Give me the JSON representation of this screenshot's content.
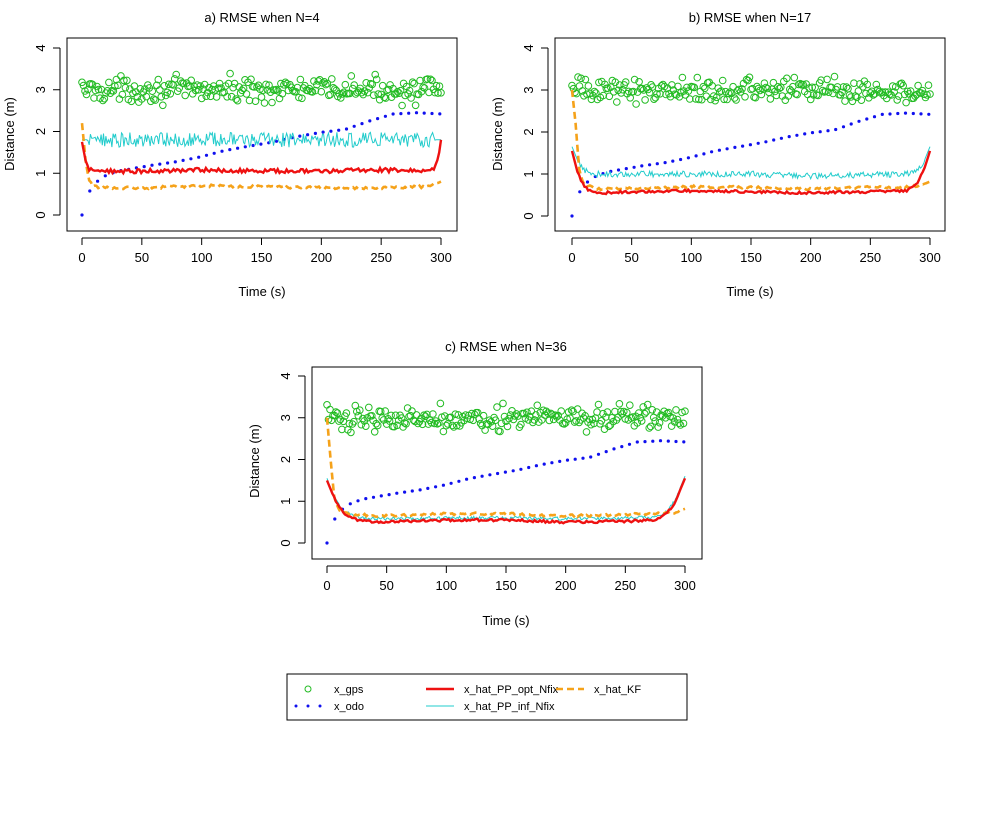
{
  "colors": {
    "gps": "#22bb22",
    "odo": "#1010ee",
    "opt": "#ee1111",
    "inf": "#22cccc",
    "kf": "#f5a21a"
  },
  "legend": {
    "placement": "bottom-center",
    "items": [
      {
        "key": "gps",
        "label": "x_gps",
        "style": "circle"
      },
      {
        "key": "odo",
        "label": "x_odo",
        "style": "dotted"
      },
      {
        "key": "opt",
        "label": "x_hat_PP_opt_Nfix",
        "style": "solid-thick"
      },
      {
        "key": "inf",
        "label": "x_hat_PP_inf_Nfix",
        "style": "solid-thin"
      },
      {
        "key": "kf",
        "label": "x_hat_KF",
        "style": "dashed"
      }
    ]
  },
  "chart_data": [
    {
      "type": "line",
      "title": "a) RMSE when N=4",
      "xlabel": "Time (s)",
      "ylabel": "Distance (m)",
      "xlim": [
        0,
        300
      ],
      "ylim": [
        0,
        4
      ],
      "xticks": [
        0,
        50,
        100,
        150,
        200,
        250,
        300
      ],
      "yticks": [
        0,
        1,
        2,
        3,
        4
      ],
      "grid": false,
      "series": [
        {
          "key": "gps",
          "name": "x_gps",
          "style": "circle",
          "x": [
            0,
            300
          ],
          "y_mean": 3.0,
          "y_spread": 0.35,
          "y_range": [
            2.4,
            3.6
          ]
        },
        {
          "key": "odo",
          "name": "x_odo",
          "style": "dotted",
          "x": [
            0,
            5,
            10,
            20,
            30,
            40,
            50,
            60,
            80,
            100,
            120,
            140,
            160,
            180,
            200,
            220,
            240,
            260,
            280,
            300
          ],
          "y": [
            0.0,
            0.5,
            0.75,
            0.95,
            1.05,
            1.1,
            1.15,
            1.2,
            1.28,
            1.4,
            1.55,
            1.65,
            1.75,
            1.88,
            1.98,
            2.05,
            2.25,
            2.42,
            2.45,
            2.42
          ]
        },
        {
          "key": "opt",
          "name": "x_hat_PP_opt_Nfix",
          "style": "solid-thick",
          "x": [
            0,
            3,
            6,
            10,
            50,
            100,
            150,
            200,
            250,
            290,
            295,
            298,
            300
          ],
          "y": [
            1.75,
            1.3,
            1.1,
            1.05,
            1.05,
            1.08,
            1.05,
            1.05,
            1.08,
            1.05,
            1.15,
            1.4,
            1.8
          ],
          "noise": 0.05
        },
        {
          "key": "inf",
          "name": "x_hat_PP_inf_Nfix",
          "style": "solid-thin",
          "x": [
            0,
            300
          ],
          "y": [
            1.8,
            1.8
          ],
          "noise": 0.18
        },
        {
          "key": "kf",
          "name": "x_hat_KF",
          "style": "dashed",
          "x": [
            0,
            3,
            6,
            10,
            20,
            50,
            100,
            150,
            200,
            250,
            290,
            300
          ],
          "y": [
            2.2,
            1.3,
            0.8,
            0.68,
            0.65,
            0.65,
            0.7,
            0.68,
            0.65,
            0.65,
            0.68,
            0.8
          ],
          "noise": 0.03
        }
      ]
    },
    {
      "type": "line",
      "title": "b) RMSE when N=17",
      "xlabel": "Time (s)",
      "ylabel": "Distance (m)",
      "xlim": [
        0,
        300
      ],
      "ylim": [
        0,
        4
      ],
      "xticks": [
        0,
        50,
        100,
        150,
        200,
        250,
        300
      ],
      "yticks": [
        0,
        1,
        2,
        3,
        4
      ],
      "grid": false,
      "series": [
        {
          "key": "gps",
          "name": "x_gps",
          "style": "circle",
          "x": [
            0,
            300
          ],
          "y_mean": 3.0,
          "y_spread": 0.35,
          "y_range": [
            2.4,
            3.6
          ]
        },
        {
          "key": "odo",
          "name": "x_odo",
          "style": "dotted",
          "x": [
            0,
            5,
            10,
            20,
            30,
            40,
            50,
            60,
            80,
            100,
            120,
            140,
            160,
            180,
            200,
            220,
            240,
            260,
            280,
            300
          ],
          "y": [
            0.0,
            0.5,
            0.75,
            0.95,
            1.05,
            1.1,
            1.15,
            1.2,
            1.28,
            1.4,
            1.55,
            1.65,
            1.75,
            1.88,
            1.98,
            2.05,
            2.25,
            2.42,
            2.45,
            2.42
          ]
        },
        {
          "key": "opt",
          "name": "x_hat_PP_opt_Nfix",
          "style": "solid-thick",
          "x": [
            0,
            5,
            10,
            15,
            25,
            50,
            100,
            150,
            200,
            250,
            280,
            290,
            295,
            300
          ],
          "y": [
            1.55,
            1.0,
            0.72,
            0.6,
            0.55,
            0.58,
            0.6,
            0.58,
            0.55,
            0.58,
            0.6,
            0.8,
            1.1,
            1.55
          ],
          "noise": 0.03
        },
        {
          "key": "inf",
          "name": "x_hat_PP_inf_Nfix",
          "style": "solid-thin",
          "x": [
            0,
            5,
            10,
            20,
            30,
            50,
            100,
            150,
            200,
            250,
            280,
            290,
            295,
            300
          ],
          "y": [
            1.65,
            1.3,
            1.1,
            1.0,
            1.0,
            1.0,
            1.0,
            1.0,
            0.95,
            0.98,
            1.0,
            1.1,
            1.3,
            1.65
          ],
          "noise": 0.07
        },
        {
          "key": "kf",
          "name": "x_hat_KF",
          "style": "dashed",
          "x": [
            0,
            3,
            6,
            10,
            20,
            50,
            100,
            150,
            200,
            250,
            290,
            300
          ],
          "y": [
            3.0,
            2.2,
            1.1,
            0.75,
            0.65,
            0.65,
            0.7,
            0.68,
            0.65,
            0.68,
            0.7,
            0.82
          ],
          "noise": 0.03
        }
      ]
    },
    {
      "type": "line",
      "title": "c) RMSE when N=36",
      "xlabel": "Time (s)",
      "ylabel": "Distance (m)",
      "xlim": [
        0,
        300
      ],
      "ylim": [
        0,
        4
      ],
      "xticks": [
        0,
        50,
        100,
        150,
        200,
        250,
        300
      ],
      "yticks": [
        0,
        1,
        2,
        3,
        4
      ],
      "grid": false,
      "series": [
        {
          "key": "gps",
          "name": "x_gps",
          "style": "circle",
          "x": [
            0,
            300
          ],
          "y_mean": 3.0,
          "y_spread": 0.35,
          "y_range": [
            2.4,
            3.6
          ]
        },
        {
          "key": "odo",
          "name": "x_odo",
          "style": "dotted",
          "x": [
            0,
            5,
            10,
            20,
            30,
            40,
            50,
            60,
            80,
            100,
            120,
            140,
            160,
            180,
            200,
            220,
            240,
            260,
            280,
            300
          ],
          "y": [
            0.0,
            0.5,
            0.75,
            0.95,
            1.05,
            1.1,
            1.15,
            1.2,
            1.28,
            1.4,
            1.55,
            1.65,
            1.75,
            1.88,
            1.98,
            2.05,
            2.25,
            2.42,
            2.45,
            2.42
          ]
        },
        {
          "key": "opt",
          "name": "x_hat_PP_opt_Nfix",
          "style": "solid-thick",
          "x": [
            0,
            5,
            10,
            15,
            25,
            40,
            100,
            150,
            200,
            250,
            275,
            285,
            292,
            300
          ],
          "y": [
            1.5,
            1.15,
            0.85,
            0.7,
            0.55,
            0.5,
            0.55,
            0.55,
            0.5,
            0.52,
            0.55,
            0.7,
            1.0,
            1.55
          ],
          "noise": 0.03
        },
        {
          "key": "inf",
          "name": "x_hat_PP_inf_Nfix",
          "style": "solid-thin",
          "x": [
            0,
            5,
            10,
            15,
            25,
            40,
            100,
            150,
            200,
            250,
            275,
            285,
            292,
            300
          ],
          "y": [
            1.55,
            1.15,
            0.9,
            0.75,
            0.62,
            0.58,
            0.6,
            0.6,
            0.58,
            0.6,
            0.62,
            0.75,
            1.05,
            1.6
          ],
          "noise": 0.04
        },
        {
          "key": "kf",
          "name": "x_hat_KF",
          "style": "dashed",
          "x": [
            0,
            3,
            6,
            10,
            20,
            50,
            100,
            150,
            200,
            250,
            290,
            300
          ],
          "y": [
            3.0,
            2.0,
            1.1,
            0.8,
            0.68,
            0.65,
            0.7,
            0.7,
            0.65,
            0.68,
            0.72,
            0.82
          ],
          "noise": 0.03
        }
      ]
    }
  ]
}
